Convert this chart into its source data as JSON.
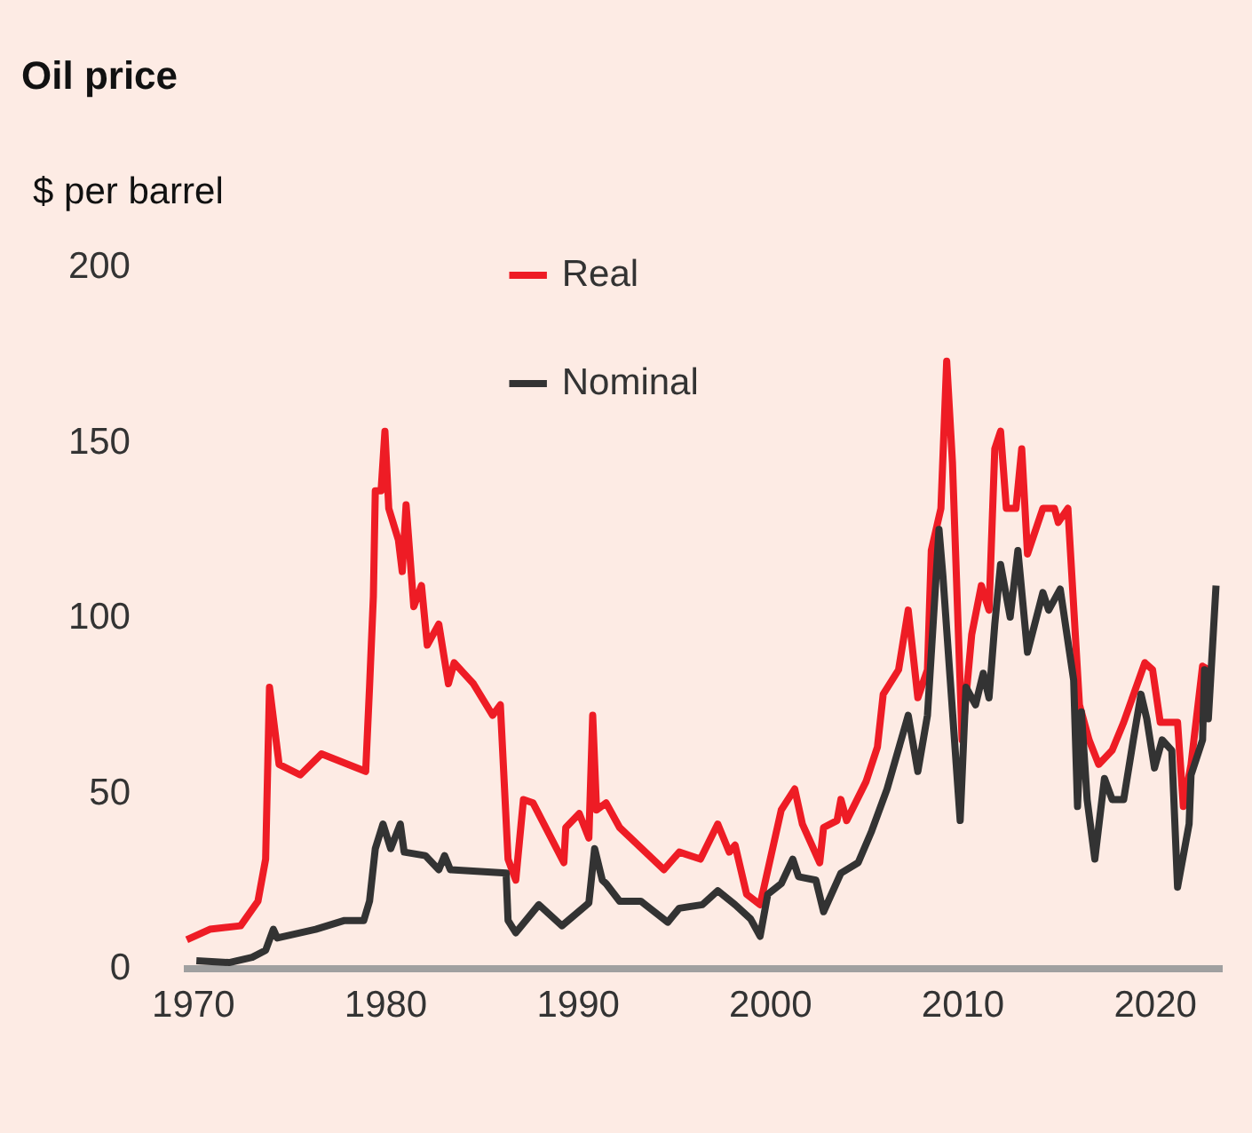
{
  "chart_data": {
    "type": "line",
    "title": "Oil price",
    "ylabel": "$ per barrel",
    "xlim": [
      1969.5,
      2023.5
    ],
    "ylim": [
      0,
      200
    ],
    "xticks": [
      1970,
      1980,
      1990,
      2000,
      2010,
      2020
    ],
    "yticks": [
      0,
      50,
      100,
      150,
      200
    ],
    "grid": false,
    "legend": "top",
    "line_style": "solid",
    "marker": "none",
    "series": [
      {
        "name": "Real",
        "color": "#ee1c25",
        "x": [
          1969.7,
          1970.9,
          1972.5,
          1973.4,
          1973.8,
          1974.0,
          1974.5,
          1975.6,
          1976.7,
          1979.0,
          1979.2,
          1979.4,
          1979.5,
          1979.8,
          1980.0,
          1980.2,
          1980.7,
          1980.9,
          1981.1,
          1981.5,
          1981.9,
          1982.2,
          1982.8,
          1983.3,
          1983.6,
          1984.6,
          1985.6,
          1986.0,
          1986.4,
          1986.8,
          1987.2,
          1987.7,
          1989.3,
          1989.4,
          1990.1,
          1990.6,
          1990.8,
          1991.0,
          1991.5,
          1992.2,
          1994.5,
          1995.3,
          1996.4,
          1997.3,
          1997.9,
          1998.2,
          1998.8,
          1999.5,
          2000.6,
          2001.3,
          2001.7,
          2002.6,
          2002.8,
          2003.5,
          2003.7,
          2004.0,
          2005.0,
          2005.6,
          2005.9,
          2006.7,
          2007.2,
          2007.7,
          2008.2,
          2008.4,
          2008.9,
          2009.2,
          2009.5,
          2010.0,
          2010.5,
          2011.0,
          2011.4,
          2011.7,
          2012.0,
          2012.3,
          2012.8,
          2013.1,
          2013.4,
          2014.2,
          2014.8,
          2015.0,
          2015.5,
          2016.1,
          2016.6,
          2017.1,
          2017.8,
          2018.4,
          2019.5,
          2019.9,
          2020.3,
          2021.2,
          2021.5,
          2021.9,
          2022.5,
          2022.8
        ],
        "values": [
          8,
          11,
          12,
          19,
          31,
          80,
          58,
          55,
          61,
          56,
          80,
          106,
          136,
          136,
          153,
          131,
          122,
          113,
          132,
          103,
          109,
          92,
          98,
          81,
          87,
          81,
          72,
          75,
          31,
          25,
          48,
          47,
          30,
          40,
          44,
          37,
          72,
          45,
          47,
          40,
          28,
          33,
          31,
          41,
          33,
          35,
          21,
          18,
          45,
          51,
          41,
          30,
          40,
          42,
          48,
          42,
          53,
          63,
          78,
          85,
          102,
          77,
          85,
          119,
          131,
          173,
          144,
          65,
          95,
          109,
          102,
          148,
          153,
          131,
          131,
          148,
          118,
          131,
          131,
          127,
          131,
          75,
          65,
          58,
          62,
          70,
          87,
          85,
          70,
          70,
          46,
          58,
          86,
          85
        ]
      },
      {
        "name": "Nominal",
        "color": "#333333",
        "x": [
          1970.2,
          1971.9,
          1973.1,
          1973.8,
          1974.2,
          1974.4,
          1976.4,
          1977.9,
          1978.9,
          1979.2,
          1979.5,
          1979.9,
          1980.3,
          1980.8,
          1981.0,
          1982.1,
          1982.8,
          1983.1,
          1983.4,
          1986.3,
          1986.4,
          1986.8,
          1988.0,
          1989.2,
          1990.6,
          1990.9,
          1991.3,
          1991.5,
          1992.2,
          1993.3,
          1994.7,
          1995.3,
          1996.5,
          1997.3,
          1998.2,
          1999.0,
          1999.5,
          1999.9,
          2000.6,
          2001.2,
          2001.5,
          2002.4,
          2002.8,
          2003.7,
          2004.6,
          2005.3,
          2006.1,
          2007.2,
          2007.7,
          2008.2,
          2008.8,
          2009.0,
          2009.9,
          2010.2,
          2010.7,
          2011.1,
          2011.4,
          2011.7,
          2012.0,
          2012.5,
          2012.9,
          2013.4,
          2014.2,
          2014.5,
          2015.1,
          2015.8,
          2016.0,
          2016.2,
          2016.5,
          2016.9,
          2017.4,
          2017.8,
          2018.4,
          2018.9,
          2019.3,
          2019.6,
          2020.0,
          2020.4,
          2020.9,
          2021.2,
          2021.8,
          2021.9,
          2022.5,
          2022.6,
          2022.8,
          2023.2
        ],
        "values": [
          2,
          1.5,
          3,
          5,
          11,
          8.5,
          11,
          13.5,
          13.5,
          19,
          34,
          41,
          34,
          41,
          33,
          32,
          28,
          32,
          28,
          27,
          13.5,
          10,
          18,
          12,
          18.5,
          34,
          25,
          24,
          19,
          19,
          13,
          17,
          18,
          22,
          18,
          14,
          9,
          21,
          24,
          31,
          26,
          25,
          16,
          27,
          30,
          39,
          51,
          72,
          56,
          72,
          125,
          112,
          42,
          80,
          75,
          84,
          77,
          98,
          115,
          100,
          119,
          90,
          107,
          102,
          108,
          82,
          46,
          73,
          48,
          31,
          54,
          48,
          48,
          65,
          78,
          71,
          57,
          65,
          62,
          23,
          41,
          55,
          65,
          85,
          71,
          109
        ]
      }
    ]
  }
}
